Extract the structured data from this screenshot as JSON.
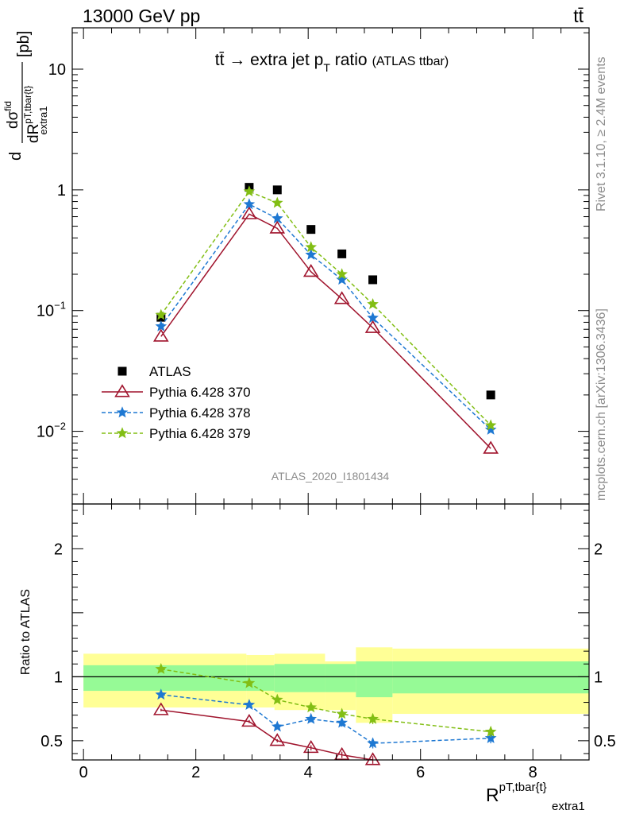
{
  "header": {
    "energy_label": "13000 GeV pp",
    "process_label": "tt̄"
  },
  "side_labels": {
    "rivet": "Rivet 3.1.10, ≥ 2.4M events",
    "mcplots": "mcplots.cern.ch [arXiv:1306.3436]"
  },
  "watermark": "ATLAS_2020_I1801434",
  "chart_data": [
    {
      "type": "scatter",
      "panel": "main",
      "title": "tt̄ → extra jet p",
      "title_sub": "T",
      "title_rest": " ratio",
      "title_small": "(ATLAS ttbar)",
      "ylabel_numerator": "dσ",
      "ylabel_numerator_sup": "fid",
      "ylabel_denominator": "dR",
      "ylabel_denominator_sup": "pT,tbar{t}",
      "ylabel_denominator_sub": "extra1",
      "ylabel_prefix": "d",
      "ylabel_unit": "[pb]",
      "y_scale": "log",
      "ylim": [
        0.0025,
        22
      ],
      "xlim": [
        -0.2,
        9.0
      ],
      "y_ticks": [
        {
          "value": 0.01,
          "base": "10",
          "exp": "−2"
        },
        {
          "value": 0.1,
          "base": "10",
          "exp": "−1"
        },
        {
          "value": 1,
          "base": "1",
          "exp": ""
        },
        {
          "value": 10,
          "base": "10",
          "exp": ""
        }
      ],
      "legend_position": "bottom-left",
      "series": [
        {
          "name": "ATLAS",
          "color": "#000000",
          "marker": "square",
          "line": "none",
          "x": [
            1.38,
            2.95,
            3.45,
            4.05,
            4.6,
            5.15,
            7.25
          ],
          "y": [
            0.088,
            1.05,
            1.0,
            0.47,
            0.295,
            0.18,
            0.02
          ]
        },
        {
          "name": "Pythia 6.428 370",
          "color": "#a0142d",
          "marker": "open-triangle",
          "line": "solid",
          "x": [
            1.38,
            2.95,
            3.45,
            4.05,
            4.6,
            5.15,
            7.25
          ],
          "y": [
            0.061,
            0.63,
            0.48,
            0.21,
            0.125,
            0.072,
            0.0072
          ]
        },
        {
          "name": "Pythia 6.428 378",
          "color": "#1e78d2",
          "marker": "star",
          "line": "dashed",
          "x": [
            1.38,
            2.95,
            3.45,
            4.05,
            4.6,
            5.15,
            7.25
          ],
          "y": [
            0.074,
            0.76,
            0.58,
            0.29,
            0.18,
            0.087,
            0.0103
          ]
        },
        {
          "name": "Pythia 6.428 379",
          "color": "#82be14",
          "marker": "star",
          "line": "dashed",
          "x": [
            1.38,
            2.95,
            3.45,
            4.05,
            4.6,
            5.15,
            7.25
          ],
          "y": [
            0.092,
            0.97,
            0.78,
            0.335,
            0.2,
            0.113,
            0.0112
          ]
        }
      ]
    },
    {
      "type": "scatter",
      "panel": "ratio",
      "ylabel": "Ratio to ATLAS",
      "xlabel": "R",
      "xlabel_sup": "pT,tbar{t}",
      "xlabel_sub": "extra1",
      "xlim": [
        -0.2,
        9.0
      ],
      "ylim": [
        0.35,
        2.35
      ],
      "x_ticks": [
        0,
        2,
        4,
        6,
        8
      ],
      "y_ticks": [
        0.5,
        1,
        2
      ],
      "reference_line": 1,
      "bands": {
        "x_edges": [
          0,
          2.9,
          3.4,
          4.3,
          4.85,
          5.5,
          9.0
        ],
        "yellow_low": [
          0.76,
          0.76,
          0.74,
          0.74,
          0.64,
          0.71
        ],
        "yellow_high": [
          1.18,
          1.17,
          1.18,
          1.12,
          1.23,
          1.22
        ],
        "green_low": [
          0.89,
          0.89,
          0.88,
          0.88,
          0.84,
          0.87
        ],
        "green_high": [
          1.09,
          1.09,
          1.1,
          1.1,
          1.12,
          1.12
        ],
        "yellow_color": "#ffff96",
        "green_color": "#96fa96"
      },
      "series": [
        {
          "name": "Pythia 6.428 370",
          "color": "#a0142d",
          "marker": "open-triangle",
          "line": "solid",
          "x": [
            1.38,
            2.95,
            3.45,
            4.05,
            4.6,
            5.15
          ],
          "y": [
            0.74,
            0.65,
            0.5,
            0.445,
            0.39,
            0.35
          ],
          "err": [
            0.01,
            0.012,
            0.012,
            0.02,
            0.025,
            0.03
          ]
        },
        {
          "name": "Pythia 6.428 378",
          "color": "#1e78d2",
          "marker": "star",
          "line": "dashed",
          "x": [
            1.38,
            2.95,
            3.45,
            4.05,
            4.6,
            5.15,
            7.25
          ],
          "y": [
            0.86,
            0.78,
            0.61,
            0.67,
            0.64,
            0.48,
            0.52
          ],
          "err": [
            0.02,
            0.02,
            0.015,
            0.025,
            0.03,
            0.04,
            0.04
          ]
        },
        {
          "name": "Pythia 6.428 379",
          "color": "#82be14",
          "marker": "star",
          "line": "dashed",
          "x": [
            1.38,
            2.95,
            3.45,
            4.05,
            4.6,
            5.15,
            7.25
          ],
          "y": [
            1.06,
            0.95,
            0.82,
            0.76,
            0.71,
            0.67,
            0.57
          ],
          "err": [
            0.025,
            0.02,
            0.015,
            0.025,
            0.03,
            0.04,
            0.04
          ]
        }
      ]
    }
  ]
}
